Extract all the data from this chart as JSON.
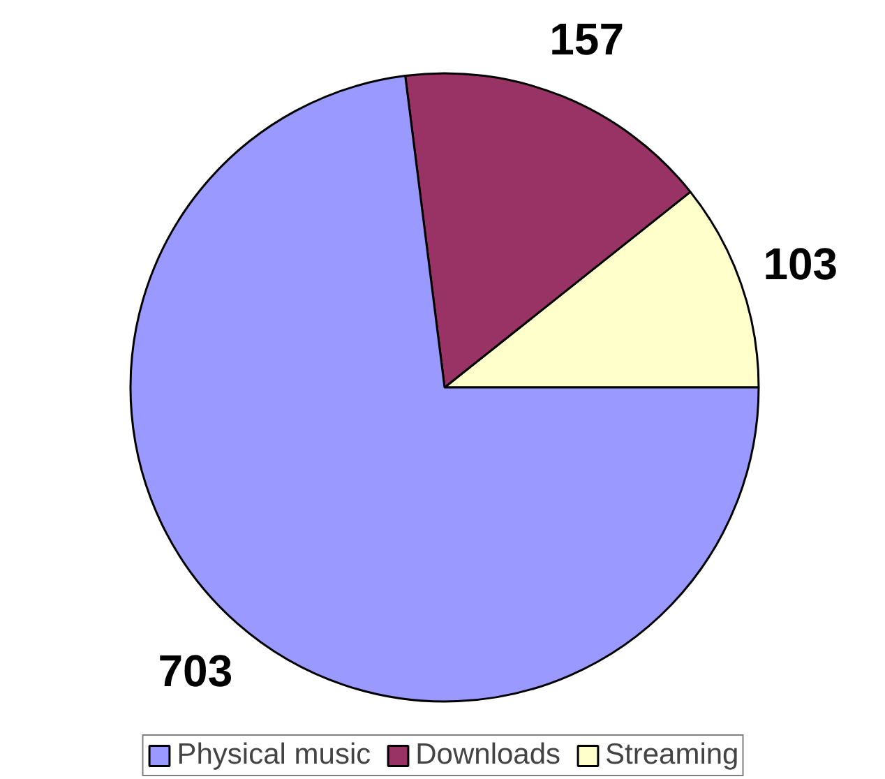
{
  "chart_data": {
    "type": "pie",
    "categories": [
      "Physical music",
      "Downloads",
      "Streaming"
    ],
    "values": [
      703,
      157,
      103
    ],
    "colors": [
      "#9999ff",
      "#993366",
      "#ffffcc"
    ],
    "data_labels": true,
    "legend": "bottom"
  }
}
